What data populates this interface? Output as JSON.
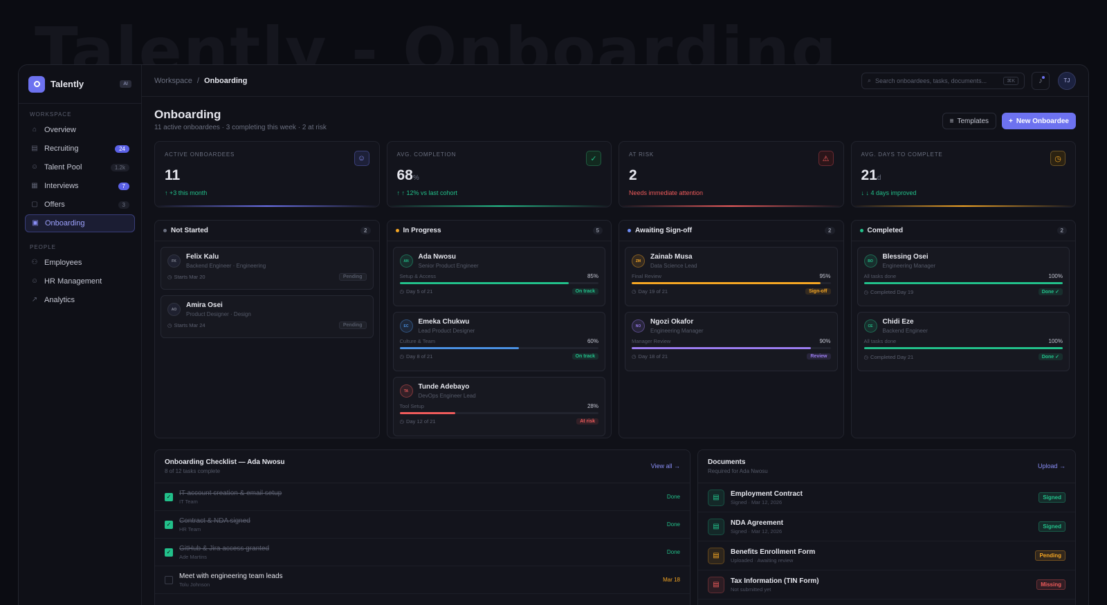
{
  "window_title": "Talently - Onboarding",
  "sidebar": {
    "brand": "Talently",
    "ai_badge": "AI",
    "workspace_label": "WORKSPACE",
    "people_label": "PEOPLE",
    "workspace_items": [
      {
        "label": "Overview",
        "count": ""
      },
      {
        "label": "Recruiting",
        "count": "24"
      },
      {
        "label": "Talent Pool",
        "count": "1.2k"
      },
      {
        "label": "Interviews",
        "count": "7"
      },
      {
        "label": "Offers",
        "count": "3"
      },
      {
        "label": "Onboarding",
        "count": ""
      }
    ],
    "people_items": [
      {
        "label": "Employees"
      },
      {
        "label": "HR Management"
      },
      {
        "label": "Analytics"
      }
    ]
  },
  "topbar": {
    "crumb_root": "Workspace",
    "crumb_sep": "/",
    "crumb_current": "Onboarding",
    "search_placeholder": "Search onboardees, tasks, documents...",
    "search_shortcut": "⌘K",
    "avatar": "TJ"
  },
  "header": {
    "title": "Onboarding",
    "subtitle": "11 active onboardees · 3 completing this week · 2 at risk",
    "templates_label": "Templates",
    "new_label": "New Onboardee"
  },
  "kpis": [
    {
      "label": "ACTIVE ONBOARDEES",
      "value": "11",
      "unit": "",
      "note": "↑ +3 this month",
      "color": "#22c08a"
    },
    {
      "label": "AVG. COMPLETION",
      "value": "68",
      "unit": "%",
      "note": "↑ ↑ 12% vs last cohort",
      "color": "#22c08a"
    },
    {
      "label": "AT RISK",
      "value": "2",
      "unit": "",
      "note": "Needs immediate attention",
      "color": "#ef5b5b"
    },
    {
      "label": "AVG. DAYS TO COMPLETE",
      "value": "21",
      "unit": "d",
      "note": "↓ ↓ 4 days improved",
      "color": "#22c08a"
    }
  ],
  "columns": [
    {
      "title": "Not Started",
      "count": "2",
      "color": "#6b7080"
    },
    {
      "title": "In Progress",
      "count": "5",
      "color": "#f5a623"
    },
    {
      "title": "Awaiting Sign-off",
      "count": "2",
      "color": "#6d8cf5"
    },
    {
      "title": "Completed",
      "count": "2",
      "color": "#22c08a"
    }
  ],
  "not_started": [
    {
      "initials": "FK",
      "name": "Felix Kalu",
      "role": "Backend Engineer · Engineering",
      "start": "Starts Mar 20",
      "tag": "Pending"
    },
    {
      "initials": "AO",
      "name": "Amira Osei",
      "role": "Product Designer · Design",
      "start": "Starts Mar 24",
      "tag": "Pending"
    }
  ],
  "in_progress": [
    {
      "initials": "AN",
      "name": "Ada Nwosu",
      "role": "Senior Product Engineer",
      "phase": "Setup & Access",
      "pct": "85%",
      "progress": 0.85,
      "day": "Day 5 of 21",
      "tag": "On track",
      "color": "#22c08a"
    },
    {
      "initials": "EC",
      "name": "Emeka Chukwu",
      "role": "Lead Product Designer",
      "phase": "Culture & Team",
      "pct": "60%",
      "progress": 0.6,
      "day": "Day 8 of 21",
      "tag": "On track",
      "color": "#4a90e2"
    },
    {
      "initials": "TA",
      "name": "Tunde Adebayo",
      "role": "DevOps Engineer Lead",
      "phase": "Tool Setup",
      "pct": "28%",
      "progress": 0.28,
      "day": "Day 12 of 21",
      "tag": "At risk",
      "color": "#ef5b5b"
    }
  ],
  "awaiting": [
    {
      "initials": "ZM",
      "name": "Zainab Musa",
      "role": "Data Science Lead",
      "phase": "Final Review",
      "pct": "95%",
      "progress": 0.95,
      "day": "Day 19 of 21",
      "tag": "Sign-off",
      "color": "#f5a623"
    },
    {
      "initials": "NO",
      "name": "Ngozi Okafor",
      "role": "Engineering Manager",
      "phase": "Manager Review",
      "pct": "90%",
      "progress": 0.9,
      "day": "Day 18 of 21",
      "tag": "Review",
      "color": "#9b7cf0"
    }
  ],
  "completed": [
    {
      "initials": "BO",
      "name": "Blessing Osei",
      "role": "Engineering Manager",
      "phase": "All tasks done",
      "pct": "100%",
      "progress": 1.0,
      "day": "Completed Day 19",
      "tag": "Done ✓",
      "color": "#22c08a"
    },
    {
      "initials": "CE",
      "name": "Chidi Eze",
      "role": "Backend Engineer",
      "phase": "All tasks done",
      "pct": "100%",
      "progress": 1.0,
      "day": "Completed Day 21",
      "tag": "Done ✓",
      "color": "#22c08a"
    }
  ],
  "checklist": {
    "title": "Onboarding Checklist — Ada Nwosu",
    "sub": "8 of 12 tasks complete",
    "link": "View all →",
    "tasks": [
      {
        "title": "IT account creation & email setup",
        "owner": "IT Team",
        "status": "Done",
        "done": true
      },
      {
        "title": "Contract & NDA signed",
        "owner": "HR Team",
        "status": "Done",
        "done": true
      },
      {
        "title": "GitHub & Jira access granted",
        "owner": "Ade Martins",
        "status": "Done",
        "done": true
      },
      {
        "title": "Meet with engineering team leads",
        "owner": "Tolu Johnson",
        "status": "Mar 18",
        "done": false
      }
    ]
  },
  "documents": {
    "title": "Documents",
    "sub": "Required for Ada Nwosu",
    "link": "Upload →",
    "items": [
      {
        "name": "Employment Contract",
        "meta": "Signed · Mar 12, 2026",
        "tag": "Signed",
        "color": "#22c08a"
      },
      {
        "name": "NDA Agreement",
        "meta": "Signed · Mar 12, 2026",
        "tag": "Signed",
        "color": "#22c08a"
      },
      {
        "name": "Benefits Enrollment Form",
        "meta": "Uploaded · Awaiting review",
        "tag": "Pending",
        "color": "#f5a623"
      },
      {
        "name": "Tax Information (TIN Form)",
        "meta": "Not submitted yet",
        "tag": "Missing",
        "color": "#ef5b5b"
      }
    ]
  }
}
